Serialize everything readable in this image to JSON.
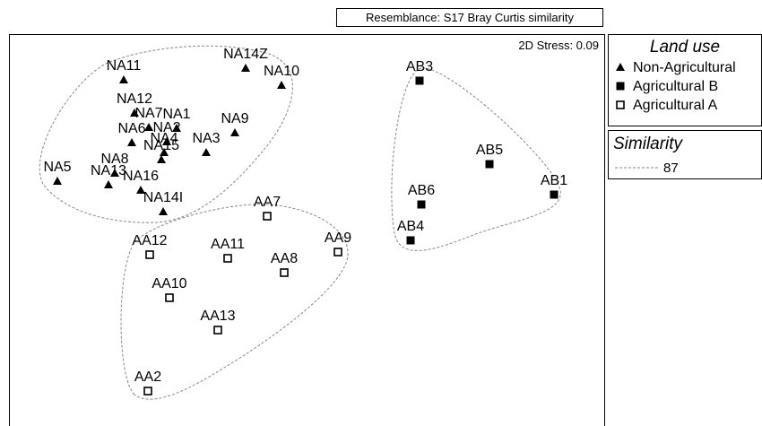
{
  "chart_data": {
    "type": "scatter",
    "title": "Resemblance: S17 Bray Curtis similarity",
    "annotation": "2D Stress: 0.09",
    "legend_title": "Land use",
    "xlim": [
      0,
      665
    ],
    "ylim": [
      0,
      437
    ],
    "series": [
      {
        "name": "Non-Agricultural",
        "marker": "triangle",
        "color": "#000000",
        "labels": [
          "NA11",
          "NA14Z",
          "NA10",
          "NA12",
          "NA7",
          "NA1",
          "NA6",
          "NA2",
          "NA4",
          "NA9",
          "NA3",
          "NA15",
          "NA5",
          "NA8",
          "NA13",
          "NA16",
          "NA14I"
        ],
        "x": [
          128,
          264,
          304,
          140,
          156,
          187,
          137,
          176,
          173,
          252,
          220,
          170,
          54,
          118,
          111,
          147,
          172
        ],
        "values": [
          386,
          399,
          380,
          349,
          333,
          332,
          316,
          317,
          305,
          327,
          305,
          297,
          273,
          282,
          269,
          263,
          239
        ]
      },
      {
        "name": "Agricultural B",
        "marker": "square",
        "color": "#000000",
        "labels": [
          "AB3",
          "AB5",
          "AB1",
          "AB6",
          "AB4"
        ],
        "x": [
          458,
          536,
          608,
          460,
          448
        ],
        "values": [
          385,
          292,
          258,
          247,
          207
        ]
      },
      {
        "name": "Agricultural A",
        "marker": "open-square",
        "color": "#000000",
        "labels": [
          "AA7",
          "AA9",
          "AA12",
          "AA11",
          "AA8",
          "AA10",
          "AA13",
          "AA2"
        ],
        "x": [
          288,
          367,
          157,
          244,
          307,
          179,
          233,
          155
        ],
        "values": [
          234,
          194,
          191,
          187,
          171,
          143,
          107,
          39
        ]
      }
    ],
    "contour_legend": {
      "title": "Similarity",
      "levels": [
        87
      ]
    }
  }
}
